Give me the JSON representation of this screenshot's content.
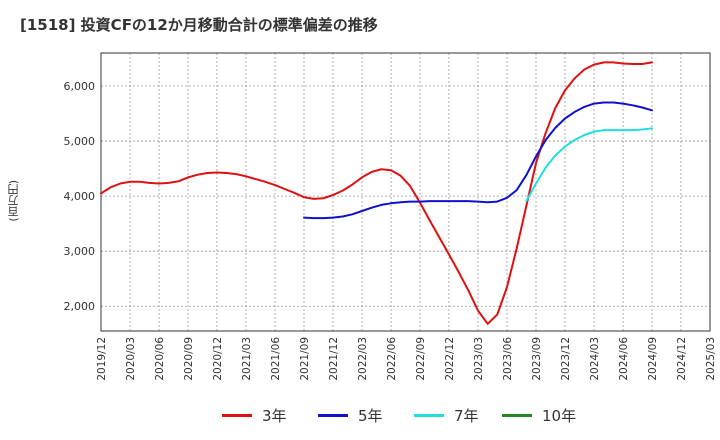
{
  "title": "[1518]  投資CFの12か月移動合計の標準偏差の推移",
  "chart_data": {
    "type": "line",
    "title": "[1518]  投資CFの12か月移動合計の標準偏差の推移",
    "ylabel": "(百万円)",
    "xlabel": "",
    "ylim": [
      1550,
      6600
    ],
    "yticks": [
      2000,
      3000,
      4000,
      5000,
      6000
    ],
    "ytick_labels": [
      "2,000",
      "3,000",
      "4,000",
      "5,000",
      "6,000"
    ],
    "xticks": [
      "2019/12",
      "2020/03",
      "2020/06",
      "2020/09",
      "2020/12",
      "2021/03",
      "2021/06",
      "2021/09",
      "2021/12",
      "2022/03",
      "2022/06",
      "2022/09",
      "2022/12",
      "2023/03",
      "2023/06",
      "2023/09",
      "2023/12",
      "2024/03",
      "2024/06",
      "2024/09",
      "2024/12",
      "2025/03"
    ],
    "grid": true,
    "legend_position": "bottom",
    "series": [
      {
        "name": "3年",
        "color": "#dd1111",
        "x": [
          "2019/12",
          "2020/01",
          "2020/02",
          "2020/03",
          "2020/04",
          "2020/05",
          "2020/06",
          "2020/07",
          "2020/08",
          "2020/09",
          "2020/10",
          "2020/11",
          "2020/12",
          "2021/01",
          "2021/02",
          "2021/03",
          "2021/04",
          "2021/05",
          "2021/06",
          "2021/07",
          "2021/08",
          "2021/09",
          "2021/10",
          "2021/11",
          "2021/12",
          "2022/01",
          "2022/02",
          "2022/03",
          "2022/04",
          "2022/05",
          "2022/06",
          "2022/07",
          "2022/08",
          "2022/09",
          "2022/10",
          "2022/11",
          "2022/12",
          "2023/01",
          "2023/02",
          "2023/03",
          "2023/04",
          "2023/05",
          "2023/06",
          "2023/07",
          "2023/08",
          "2023/09",
          "2023/10",
          "2023/11",
          "2023/12",
          "2024/01",
          "2024/02",
          "2024/03",
          "2024/04",
          "2024/05",
          "2024/06",
          "2024/07",
          "2024/08",
          "2024/09"
        ],
        "values": [
          4050,
          4160,
          4230,
          4260,
          4260,
          4240,
          4230,
          4240,
          4270,
          4340,
          4390,
          4420,
          4430,
          4420,
          4400,
          4360,
          4310,
          4260,
          4200,
          4130,
          4060,
          3980,
          3950,
          3960,
          4020,
          4100,
          4210,
          4340,
          4440,
          4490,
          4470,
          4370,
          4180,
          3880,
          3560,
          3250,
          2940,
          2620,
          2290,
          1920,
          1680,
          1850,
          2350,
          3050,
          3820,
          4600,
          5150,
          5600,
          5920,
          6140,
          6300,
          6390,
          6430,
          6430,
          6410,
          6400,
          6400,
          6430
        ]
      },
      {
        "name": "5年",
        "color": "#1111cc",
        "x": [
          "2021/09",
          "2021/10",
          "2021/11",
          "2021/12",
          "2022/01",
          "2022/02",
          "2022/03",
          "2022/04",
          "2022/05",
          "2022/06",
          "2022/07",
          "2022/08",
          "2022/09",
          "2022/10",
          "2022/11",
          "2022/12",
          "2023/01",
          "2023/02",
          "2023/03",
          "2023/04",
          "2023/05",
          "2023/06",
          "2023/07",
          "2023/08",
          "2023/09",
          "2023/10",
          "2023/11",
          "2023/12",
          "2024/01",
          "2024/02",
          "2024/03",
          "2024/04",
          "2024/05",
          "2024/06",
          "2024/07",
          "2024/08",
          "2024/09"
        ],
        "values": [
          3610,
          3600,
          3600,
          3610,
          3630,
          3670,
          3730,
          3790,
          3840,
          3870,
          3890,
          3900,
          3900,
          3910,
          3910,
          3910,
          3910,
          3910,
          3900,
          3890,
          3900,
          3970,
          4110,
          4380,
          4720,
          5020,
          5240,
          5410,
          5530,
          5620,
          5680,
          5700,
          5700,
          5680,
          5650,
          5610,
          5560
        ]
      },
      {
        "name": "7年",
        "color": "#22dddd",
        "x": [
          "2023/08",
          "2023/09",
          "2023/10",
          "2023/11",
          "2023/12",
          "2024/01",
          "2024/02",
          "2024/03",
          "2024/04",
          "2024/05",
          "2024/06",
          "2024/07",
          "2024/08",
          "2024/09"
        ],
        "values": [
          3910,
          4230,
          4520,
          4740,
          4900,
          5020,
          5110,
          5170,
          5200,
          5200,
          5200,
          5200,
          5210,
          5230
        ]
      },
      {
        "name": "10年",
        "color": "#228822",
        "x": [],
        "values": []
      }
    ]
  }
}
